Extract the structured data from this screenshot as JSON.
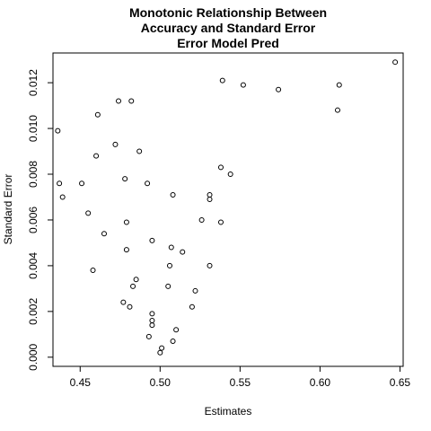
{
  "chart_data": {
    "type": "scatter",
    "title_lines": [
      "Monotonic Relationship Between",
      "Accuracy and Standard Error",
      "Error Model Pred"
    ],
    "xlabel": "Estimates",
    "ylabel": "Standard Error",
    "xlim": [
      0.433,
      0.652
    ],
    "ylim": [
      -0.0004,
      0.0133
    ],
    "x_ticks": [
      0.45,
      0.5,
      0.55,
      0.6,
      0.65
    ],
    "x_tick_labels": [
      "0.45",
      "0.50",
      "0.55",
      "0.60",
      "0.65"
    ],
    "y_ticks": [
      0.0,
      0.002,
      0.004,
      0.006,
      0.008,
      0.01,
      0.012
    ],
    "y_tick_labels": [
      "0.000",
      "0.002",
      "0.004",
      "0.006",
      "0.008",
      "0.010",
      "0.012"
    ],
    "points": [
      [
        0.647,
        0.0129
      ],
      [
        0.612,
        0.0119
      ],
      [
        0.611,
        0.0108
      ],
      [
        0.574,
        0.0117
      ],
      [
        0.552,
        0.0119
      ],
      [
        0.539,
        0.0121
      ],
      [
        0.482,
        0.0112
      ],
      [
        0.474,
        0.0112
      ],
      [
        0.461,
        0.0106
      ],
      [
        0.436,
        0.0099
      ],
      [
        0.472,
        0.0093
      ],
      [
        0.487,
        0.009
      ],
      [
        0.46,
        0.0088
      ],
      [
        0.538,
        0.0083
      ],
      [
        0.544,
        0.008
      ],
      [
        0.478,
        0.0078
      ],
      [
        0.437,
        0.0076
      ],
      [
        0.451,
        0.0076
      ],
      [
        0.492,
        0.0076
      ],
      [
        0.508,
        0.0071
      ],
      [
        0.531,
        0.0071
      ],
      [
        0.531,
        0.0069
      ],
      [
        0.439,
        0.007
      ],
      [
        0.455,
        0.0063
      ],
      [
        0.526,
        0.006
      ],
      [
        0.538,
        0.0059
      ],
      [
        0.479,
        0.0059
      ],
      [
        0.465,
        0.0054
      ],
      [
        0.495,
        0.0051
      ],
      [
        0.507,
        0.0048
      ],
      [
        0.479,
        0.0047
      ],
      [
        0.514,
        0.0046
      ],
      [
        0.506,
        0.004
      ],
      [
        0.531,
        0.004
      ],
      [
        0.458,
        0.0038
      ],
      [
        0.485,
        0.0034
      ],
      [
        0.483,
        0.0031
      ],
      [
        0.505,
        0.0031
      ],
      [
        0.522,
        0.0029
      ],
      [
        0.477,
        0.0024
      ],
      [
        0.481,
        0.0022
      ],
      [
        0.52,
        0.0022
      ],
      [
        0.495,
        0.0019
      ],
      [
        0.495,
        0.0016
      ],
      [
        0.495,
        0.0014
      ],
      [
        0.51,
        0.0012
      ],
      [
        0.493,
        0.0009
      ],
      [
        0.508,
        0.0007
      ],
      [
        0.501,
        0.0004
      ],
      [
        0.5,
        0.0002
      ]
    ],
    "grid": false,
    "legend": "none"
  }
}
